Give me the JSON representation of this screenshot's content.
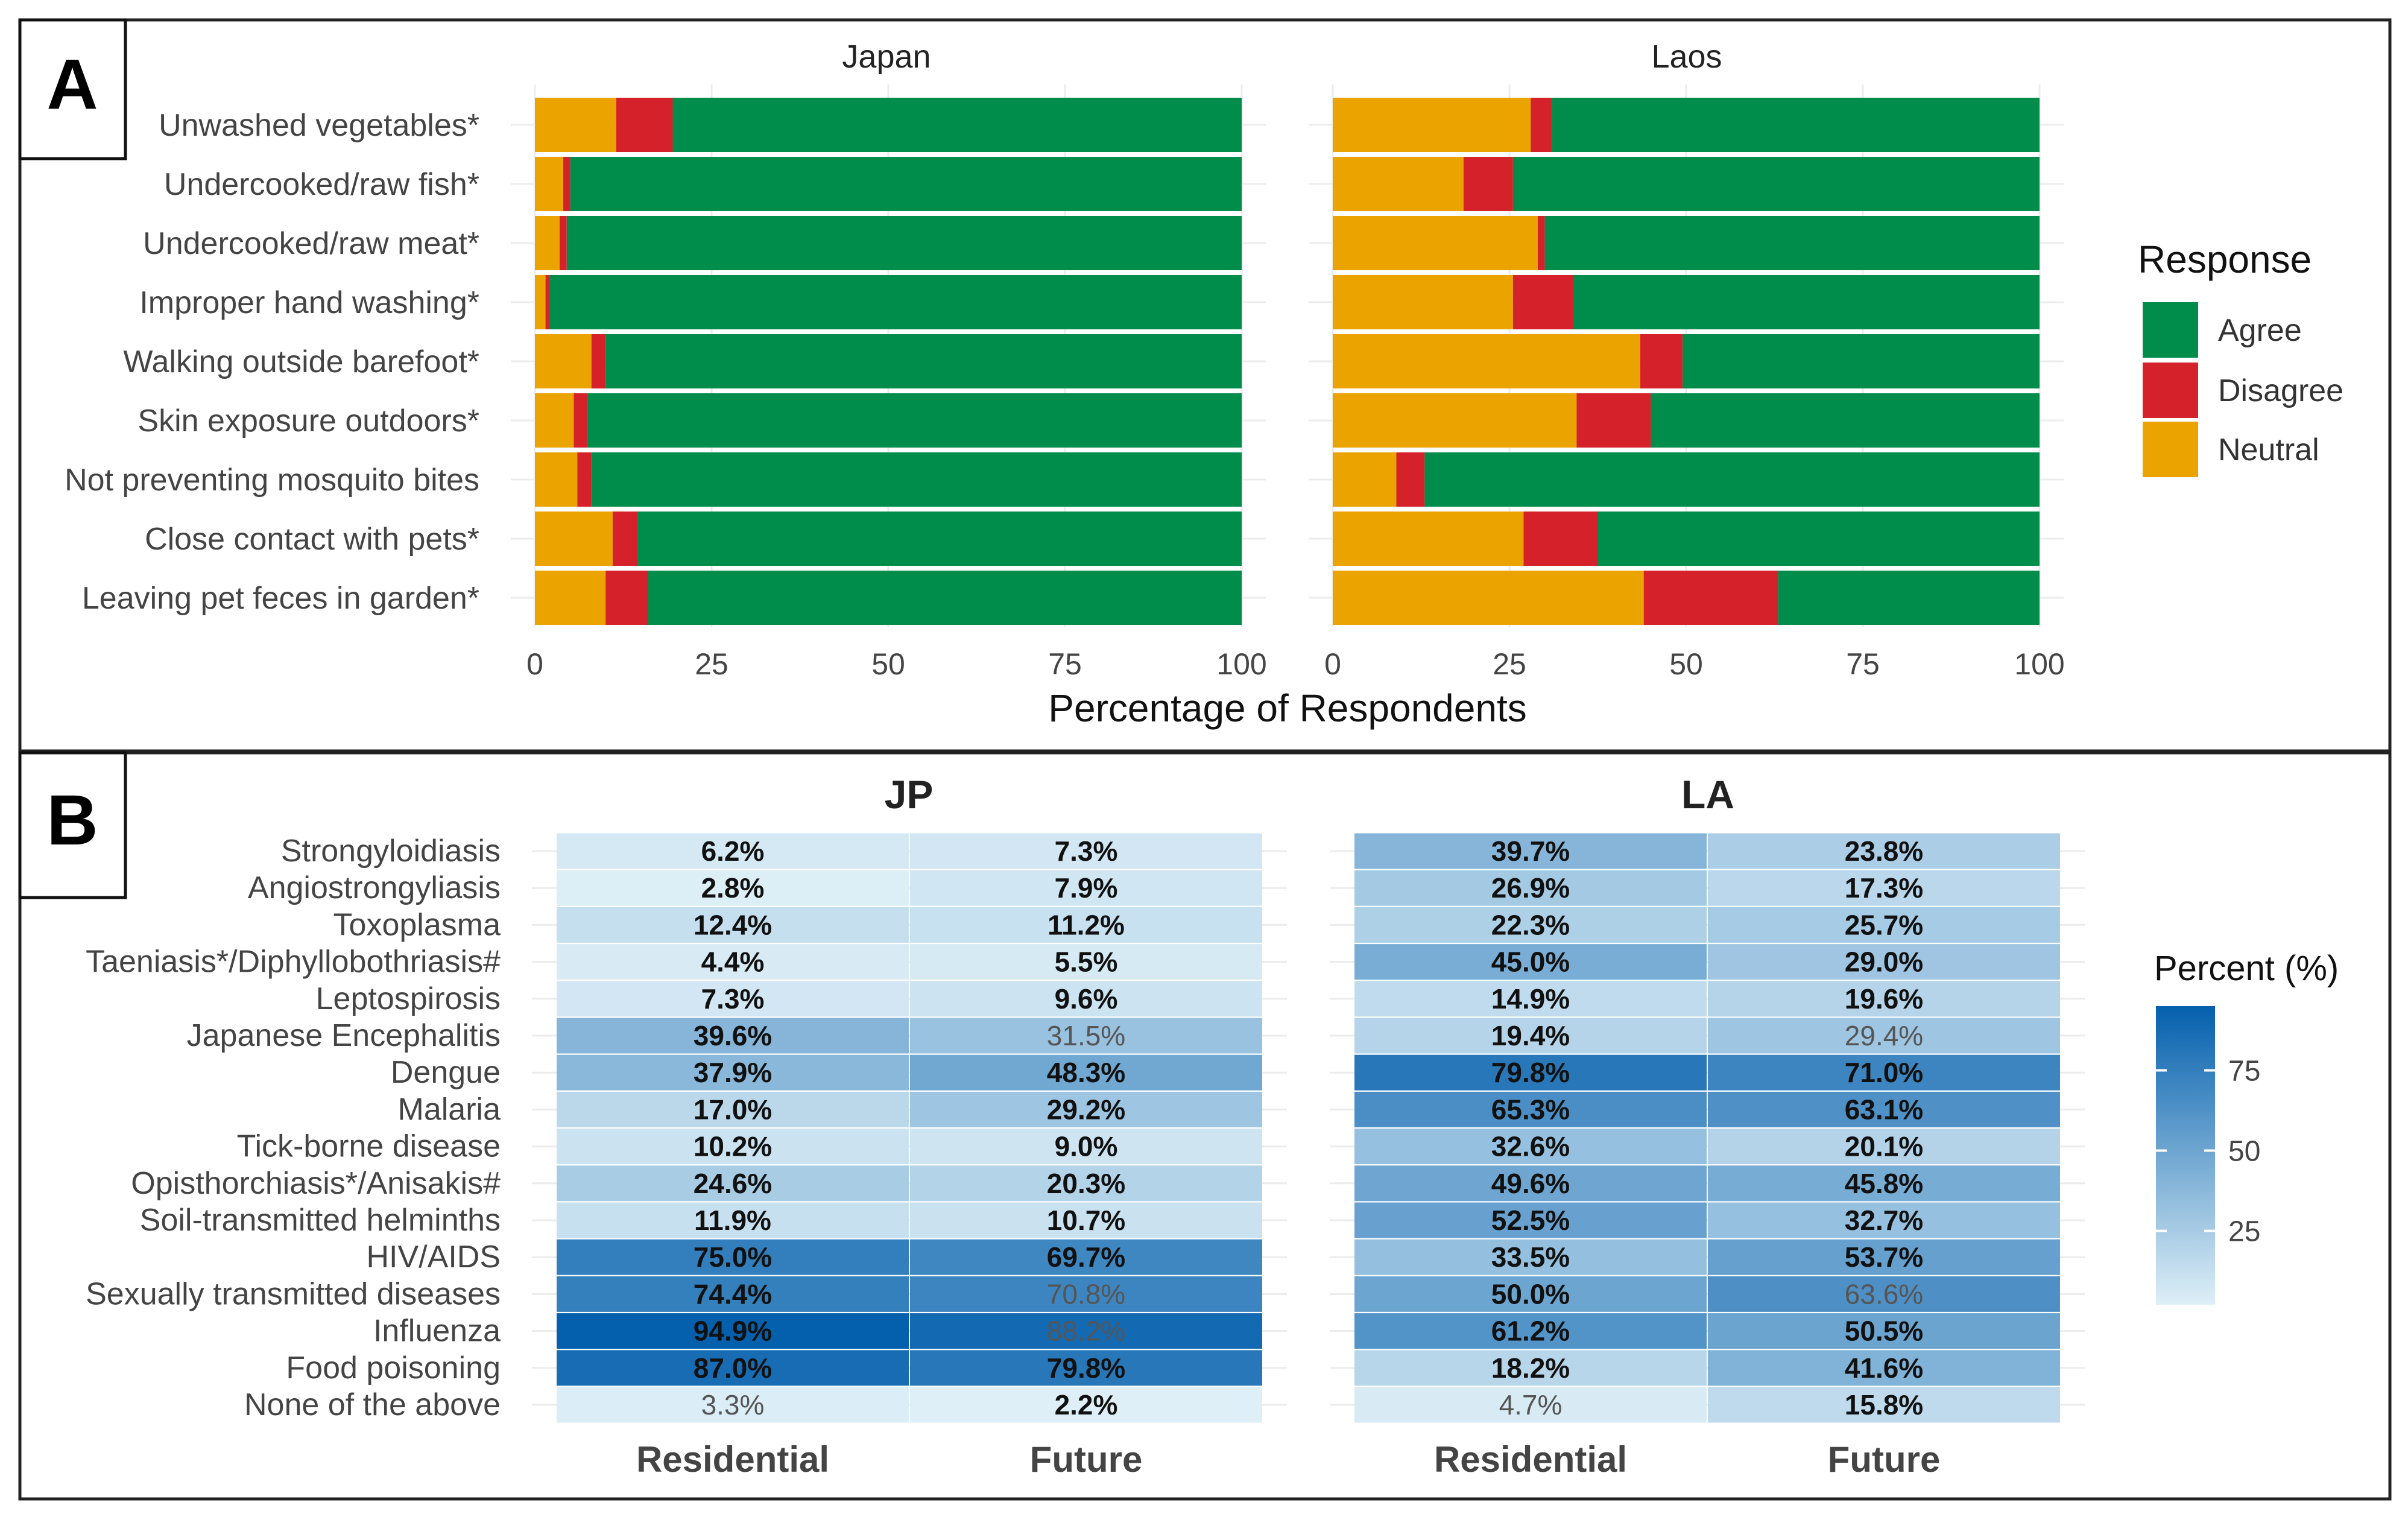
{
  "chart_data": [
    {
      "panel_label": "A",
      "type": "bar",
      "orientation": "horizontal",
      "stacked": true,
      "xlabel": "Percentage of Respondents",
      "xlim": [
        0,
        100
      ],
      "xticks": [
        "0",
        "25",
        "50",
        "75",
        "100"
      ],
      "legend": {
        "title": "Response",
        "position": "right",
        "entries": [
          "Agree",
          "Disagree",
          "Neutral"
        ]
      },
      "categories": [
        "Unwashed vegetables*",
        "Undercooked/raw fish*",
        "Undercooked/raw meat*",
        "Improper hand washing*",
        "Walking outside barefoot*",
        "Skin exposure outdoors*",
        "Not preventing mosquito bites",
        "Close contact with pets*",
        "Leaving pet feces in garden*"
      ],
      "facets": [
        {
          "name": "Japan",
          "series": [
            {
              "name": "Neutral",
              "values": [
                11.5,
                4.0,
                3.5,
                1.5,
                8.0,
                5.5,
                6.0,
                11.0,
                10.0
              ]
            },
            {
              "name": "Disagree",
              "values": [
                8.0,
                1.0,
                1.0,
                0.5,
                2.0,
                2.0,
                2.0,
                3.5,
                6.0
              ]
            },
            {
              "name": "Agree",
              "values": [
                80.5,
                95.0,
                95.5,
                98.0,
                90.0,
                92.5,
                92.0,
                85.5,
                84.0
              ]
            }
          ]
        },
        {
          "name": "Laos",
          "series": [
            {
              "name": "Neutral",
              "values": [
                28.0,
                18.5,
                29.0,
                25.5,
                43.5,
                34.5,
                9.0,
                27.0,
                44.0
              ]
            },
            {
              "name": "Disagree",
              "values": [
                3.0,
                7.0,
                1.0,
                8.5,
                6.0,
                10.5,
                4.0,
                10.5,
                19.0
              ]
            },
            {
              "name": "Agree",
              "values": [
                69.0,
                74.5,
                70.0,
                66.0,
                50.5,
                55.0,
                87.0,
                62.5,
                37.0
              ]
            }
          ]
        }
      ],
      "colors": {
        "Agree": "#008c4a",
        "Disagree": "#d4212a",
        "Neutral": "#eba300"
      }
    },
    {
      "panel_label": "B",
      "type": "heatmap",
      "rows": [
        "Strongyloidiasis",
        "Angiostrongyliasis",
        "Toxoplasma",
        "Taeniasis*/Diphyllobothriasis#",
        "Leptospirosis",
        "Japanese Encephalitis",
        "Dengue",
        "Malaria",
        "Tick-borne disease",
        "Opisthorchiasis*/Anisakis#",
        "Soil-transmitted helminths",
        "HIV/AIDS",
        "Sexually transmitted diseases",
        "Influenza",
        "Food poisoning",
        "None of the above"
      ],
      "columns": [
        "Residential",
        "Future"
      ],
      "facets": [
        {
          "name": "JP",
          "values": [
            [
              6.2,
              7.3
            ],
            [
              2.8,
              7.9
            ],
            [
              12.4,
              11.2
            ],
            [
              4.4,
              5.5
            ],
            [
              7.3,
              9.6
            ],
            [
              39.6,
              31.5
            ],
            [
              37.9,
              48.3
            ],
            [
              17.0,
              29.2
            ],
            [
              10.2,
              9.0
            ],
            [
              24.6,
              20.3
            ],
            [
              11.9,
              10.7
            ],
            [
              75.0,
              69.7
            ],
            [
              74.4,
              70.8
            ],
            [
              94.9,
              88.2
            ],
            [
              87.0,
              79.8
            ],
            [
              3.3,
              2.2
            ]
          ],
          "labels": [
            [
              "6.2%",
              "7.3%"
            ],
            [
              "2.8%",
              "7.9%"
            ],
            [
              "12.4%",
              "11.2%"
            ],
            [
              "4.4%",
              "5.5%"
            ],
            [
              "7.3%",
              "9.6%"
            ],
            [
              "39.6%",
              "31.5%"
            ],
            [
              "37.9%",
              "48.3%"
            ],
            [
              "17.0%",
              "29.2%"
            ],
            [
              "10.2%",
              "9.0%"
            ],
            [
              "24.6%",
              "20.3%"
            ],
            [
              "11.9%",
              "10.7%"
            ],
            [
              "75.0%",
              "69.7%"
            ],
            [
              "74.4%",
              "70.8%"
            ],
            [
              "94.9%",
              "88.2%"
            ],
            [
              "87.0%",
              "79.8%"
            ],
            [
              "3.3%",
              "2.2%"
            ]
          ],
          "bold": [
            [
              true,
              true
            ],
            [
              true,
              true
            ],
            [
              true,
              true
            ],
            [
              true,
              true
            ],
            [
              true,
              true
            ],
            [
              true,
              false
            ],
            [
              true,
              true
            ],
            [
              true,
              true
            ],
            [
              true,
              true
            ],
            [
              true,
              true
            ],
            [
              true,
              true
            ],
            [
              true,
              true
            ],
            [
              true,
              false
            ],
            [
              true,
              false
            ],
            [
              true,
              true
            ],
            [
              false,
              true
            ]
          ]
        },
        {
          "name": "LA",
          "values": [
            [
              39.7,
              23.8
            ],
            [
              26.9,
              17.3
            ],
            [
              22.3,
              25.7
            ],
            [
              45.0,
              29.0
            ],
            [
              14.9,
              19.6
            ],
            [
              19.4,
              29.4
            ],
            [
              79.8,
              71.0
            ],
            [
              65.3,
              63.1
            ],
            [
              32.6,
              20.1
            ],
            [
              49.6,
              45.8
            ],
            [
              52.5,
              32.7
            ],
            [
              33.5,
              53.7
            ],
            [
              50.0,
              63.6
            ],
            [
              61.2,
              50.5
            ],
            [
              18.2,
              41.6
            ],
            [
              4.7,
              15.8
            ]
          ],
          "labels": [
            [
              "39.7%",
              "23.8%"
            ],
            [
              "26.9%",
              "17.3%"
            ],
            [
              "22.3%",
              "25.7%"
            ],
            [
              "45.0%",
              "29.0%"
            ],
            [
              "14.9%",
              "19.6%"
            ],
            [
              "19.4%",
              "29.4%"
            ],
            [
              "79.8%",
              "71.0%"
            ],
            [
              "65.3%",
              "63.1%"
            ],
            [
              "32.6%",
              "20.1%"
            ],
            [
              "49.6%",
              "45.8%"
            ],
            [
              "52.5%",
              "32.7%"
            ],
            [
              "33.5%",
              "53.7%"
            ],
            [
              "50.0%",
              "63.6%"
            ],
            [
              "61.2%",
              "50.5%"
            ],
            [
              "18.2%",
              "41.6%"
            ],
            [
              "4.7%",
              "15.8%"
            ]
          ],
          "bold": [
            [
              true,
              true
            ],
            [
              true,
              true
            ],
            [
              true,
              true
            ],
            [
              true,
              true
            ],
            [
              true,
              true
            ],
            [
              true,
              false
            ],
            [
              true,
              true
            ],
            [
              true,
              true
            ],
            [
              true,
              true
            ],
            [
              true,
              true
            ],
            [
              true,
              true
            ],
            [
              true,
              true
            ],
            [
              true,
              false
            ],
            [
              true,
              true
            ],
            [
              true,
              true
            ],
            [
              false,
              true
            ]
          ]
        }
      ],
      "legend": {
        "title": "Percent (%)",
        "position": "right",
        "ticks": [
          "25",
          "50",
          "75"
        ],
        "range": [
          2,
          95
        ]
      },
      "colors": {
        "low": "#deeff7",
        "high": "#0460ad"
      }
    }
  ]
}
